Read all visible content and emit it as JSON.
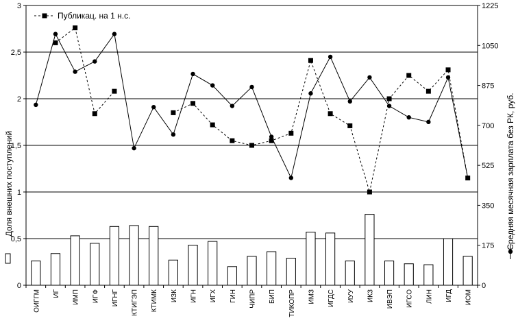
{
  "chart_data": {
    "type": "bar",
    "categories": [
      "ОИГГМ",
      "ИГ",
      "ИМП",
      "ИГФ",
      "ИГНГ",
      "КТИГЭП",
      "КТИМК",
      "ИЗК",
      "ИГН",
      "ИГХ",
      "ГИН",
      "ЧИПР",
      "БИП",
      "ТИКОПР",
      "ИМЗ",
      "ИГДС",
      "ИУУ",
      "ИКЗ",
      "ИВЭП",
      "ИГСО",
      "ЛИН",
      "ИГД",
      "ИОМ"
    ],
    "series": [
      {
        "kind": "bar",
        "axis": "left",
        "values": [
          0.26,
          0.34,
          0.53,
          0.45,
          0.63,
          0.64,
          0.63,
          0.27,
          0.43,
          0.47,
          0.2,
          0.31,
          0.36,
          0.29,
          0.57,
          0.56,
          0.26,
          0.76,
          0.26,
          0.23,
          0.22,
          0.5,
          0.31
        ]
      },
      {
        "kind": "line",
        "axis": "left",
        "name": "Публикац. на 1 н.с.",
        "style": "dashed",
        "marker": "square",
        "values": [
          null,
          2.6,
          2.76,
          1.84,
          2.08,
          null,
          null,
          1.85,
          1.95,
          1.72,
          1.55,
          1.5,
          1.55,
          1.63,
          2.41,
          1.84,
          1.71,
          1.0,
          2.0,
          2.25,
          2.08,
          2.31,
          1.15
        ]
      },
      {
        "kind": "line",
        "axis": "right",
        "style": "solid",
        "marker": "circle",
        "values": [
          790,
          1100,
          935,
          980,
          1100,
          600,
          780,
          660,
          925,
          875,
          785,
          868,
          650,
          470,
          840,
          1000,
          805,
          910,
          785,
          735,
          715,
          910,
          470
        ]
      }
    ],
    "ylabel": "Доля внешних поступлений",
    "ylabel_right": "Средняя месячная зарплата без РК, руб.",
    "ylim": [
      0,
      3
    ],
    "ylim_right": [
      0,
      1225
    ],
    "yticks": [
      "0",
      "0,5",
      "1",
      "1,5",
      "2",
      "2,5",
      "3"
    ],
    "yticks_right": [
      "0",
      "175",
      "350",
      "525",
      "700",
      "875",
      "1050",
      "1225"
    ],
    "grid": "horizontal",
    "legend": "top-left",
    "colors": {
      "bar_fill": "#ffffff",
      "stroke": "#000000",
      "background": "#ffffff"
    }
  }
}
